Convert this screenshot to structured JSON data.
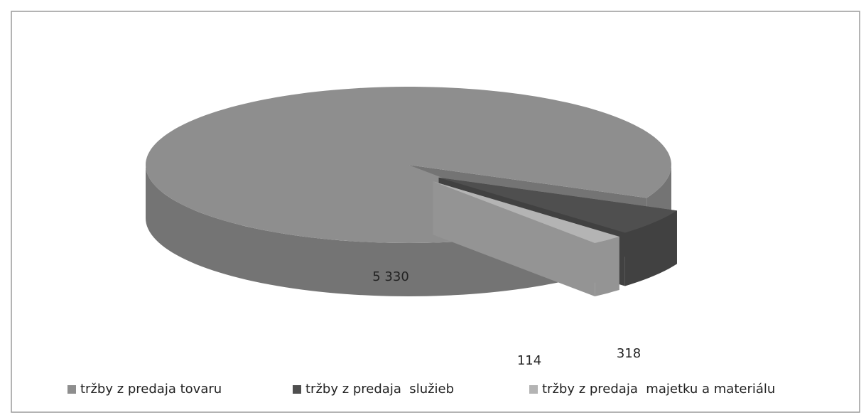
{
  "chart_data": {
    "type": "pie",
    "categories": [
      "tržby z predaja tovaru",
      "tržby z predaja  služieb",
      "tržby z predaja  majetku a materiálu"
    ],
    "values": [
      5330,
      318,
      114
    ],
    "value_labels": [
      "5 330",
      "318",
      "114"
    ],
    "colors": [
      "#8e8e8e",
      "#4f4f4f",
      "#b4b4b4"
    ],
    "legend": "bottom"
  }
}
